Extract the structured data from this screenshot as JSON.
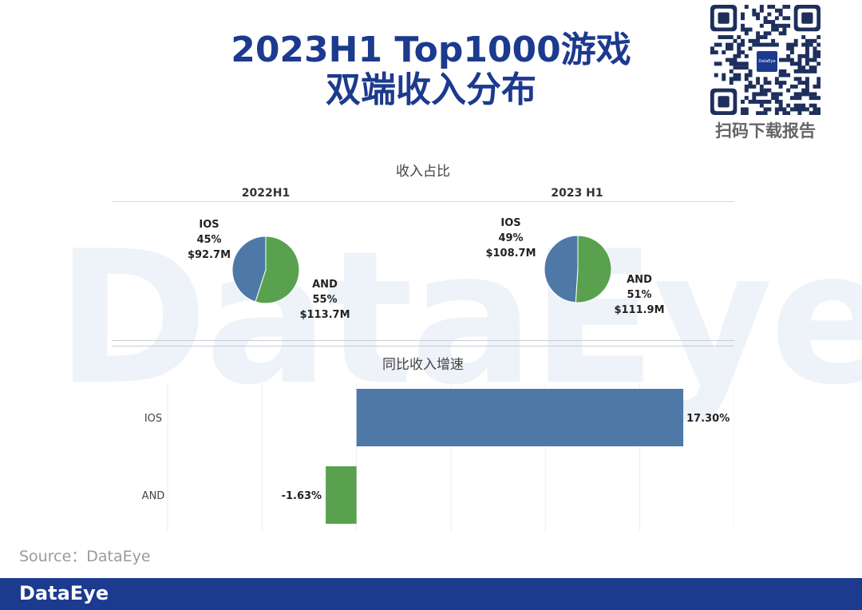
{
  "watermark": "DataEye",
  "title": {
    "line1": "2023H1 Top1000游戏",
    "line2": "双端收入分布"
  },
  "qr": {
    "logo_text": "DataEye",
    "caption": "扫码下载报告"
  },
  "colors": {
    "ios": "#4e79a7",
    "and": "#59a14f",
    "title": "#1c3a8e",
    "footer": "#1c3a8e"
  },
  "chart_data": [
    {
      "type": "pie",
      "section_title": "收入占比",
      "title": "2022H1",
      "slices": [
        {
          "name": "IOS",
          "share": "45%",
          "value": "$92.7M",
          "pct": 45
        },
        {
          "name": "AND",
          "share": "55%",
          "value": "$113.7M",
          "pct": 55
        }
      ]
    },
    {
      "type": "pie",
      "title": "2023 H1",
      "slices": [
        {
          "name": "IOS",
          "share": "49%",
          "value": "$108.7M",
          "pct": 49
        },
        {
          "name": "AND",
          "share": "51%",
          "value": "$111.9M",
          "pct": 51
        }
      ]
    },
    {
      "type": "bar",
      "orientation": "horizontal",
      "title": "同比收入增速",
      "categories": [
        "IOS",
        "AND"
      ],
      "values": [
        17.3,
        -1.63
      ],
      "labels": [
        "17.30%",
        "-1.63%"
      ],
      "xlim": [
        -10,
        20
      ],
      "grid": true
    }
  ],
  "source": "Source：DataEye",
  "footer": {
    "logo": "DataEye"
  }
}
